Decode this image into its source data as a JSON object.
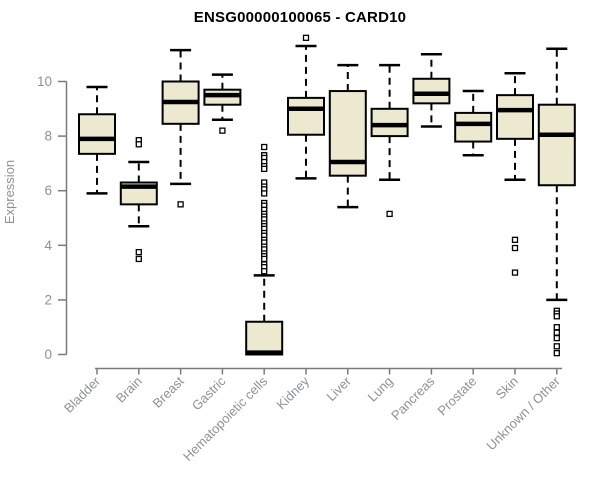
{
  "title": "ENSG00000100065 - CARD10",
  "colors": {
    "background": "#FFFFFF",
    "box_fill": "#EDE8D0",
    "box_border": "#000000",
    "median": "#000000",
    "outlier_fill": "#FFFFFF",
    "axis_line": "#7A7A7A",
    "axis_text": "#8C9199",
    "title_text": "#000000"
  },
  "chart_data": {
    "type": "boxplot",
    "title": "ENSG00000100065 - CARD10",
    "xlabel": "",
    "ylabel": "Expression",
    "ylim": [
      0,
      11.6
    ],
    "yticks": [
      0,
      2,
      4,
      6,
      8,
      10
    ],
    "grid": false,
    "legend": null,
    "categories": [
      "Bladder",
      "Brain",
      "Breast",
      "Gastric",
      "Hematopoietic cells",
      "Kidney",
      "Liver",
      "Lung",
      "Pancreas",
      "Prostate",
      "Skin",
      "Unknown / Other"
    ],
    "series": [
      {
        "name": "Bladder",
        "whisker_low": 5.9,
        "q1": 7.35,
        "median": 7.9,
        "q3": 8.8,
        "whisker_high": 9.8,
        "outliers": []
      },
      {
        "name": "Brain",
        "whisker_low": 4.7,
        "q1": 5.5,
        "median": 6.15,
        "q3": 6.3,
        "whisker_high": 7.05,
        "outliers": [
          7.85,
          7.7,
          3.75,
          3.5
        ]
      },
      {
        "name": "Breast",
        "whisker_low": 6.25,
        "q1": 8.45,
        "median": 9.25,
        "q3": 10.0,
        "whisker_high": 11.15,
        "outliers": [
          5.5
        ]
      },
      {
        "name": "Gastric",
        "whisker_low": 8.6,
        "q1": 9.15,
        "median": 9.5,
        "q3": 9.7,
        "whisker_high": 10.25,
        "outliers": [
          8.2
        ]
      },
      {
        "name": "Hematopoietic cells",
        "whisker_low": 0,
        "q1": 0,
        "median": 0.07,
        "q3": 1.2,
        "whisker_high": 2.9,
        "outliers": [
          7.6,
          7.3,
          7.2,
          7.05,
          6.9,
          6.8,
          6.3,
          6.15,
          6.05,
          5.9,
          5.55,
          5.45,
          5.3,
          5.15,
          5.05,
          4.95,
          4.8,
          4.7,
          4.6,
          4.45,
          4.35,
          4.2,
          4.1,
          3.95,
          3.85,
          3.7,
          3.6,
          3.5,
          3.3,
          3.2,
          3.05
        ]
      },
      {
        "name": "Kidney",
        "whisker_low": 6.45,
        "q1": 8.05,
        "median": 9.0,
        "q3": 9.4,
        "whisker_high": 11.3,
        "outliers": [
          11.6
        ]
      },
      {
        "name": "Liver",
        "whisker_low": 5.4,
        "q1": 6.55,
        "median": 7.05,
        "q3": 9.65,
        "whisker_high": 10.6,
        "outliers": []
      },
      {
        "name": "Lung",
        "whisker_low": 6.4,
        "q1": 8.0,
        "median": 8.4,
        "q3": 9.0,
        "whisker_high": 10.6,
        "outliers": [
          5.15
        ]
      },
      {
        "name": "Pancreas",
        "whisker_low": 8.35,
        "q1": 9.2,
        "median": 9.55,
        "q3": 10.1,
        "whisker_high": 11.0,
        "outliers": []
      },
      {
        "name": "Prostate",
        "whisker_low": 7.3,
        "q1": 7.8,
        "median": 8.45,
        "q3": 8.85,
        "whisker_high": 9.65,
        "outliers": []
      },
      {
        "name": "Skin",
        "whisker_low": 6.4,
        "q1": 7.9,
        "median": 8.95,
        "q3": 9.5,
        "whisker_high": 10.3,
        "outliers": [
          4.2,
          3.9,
          3.0
        ]
      },
      {
        "name": "Unknown / Other",
        "whisker_low": 2.0,
        "q1": 6.2,
        "median": 8.05,
        "q3": 9.15,
        "whisker_high": 11.2,
        "outliers": [
          1.6,
          1.5,
          1.4,
          1.0,
          0.8,
          0.6,
          0.3,
          0.05
        ]
      }
    ]
  }
}
